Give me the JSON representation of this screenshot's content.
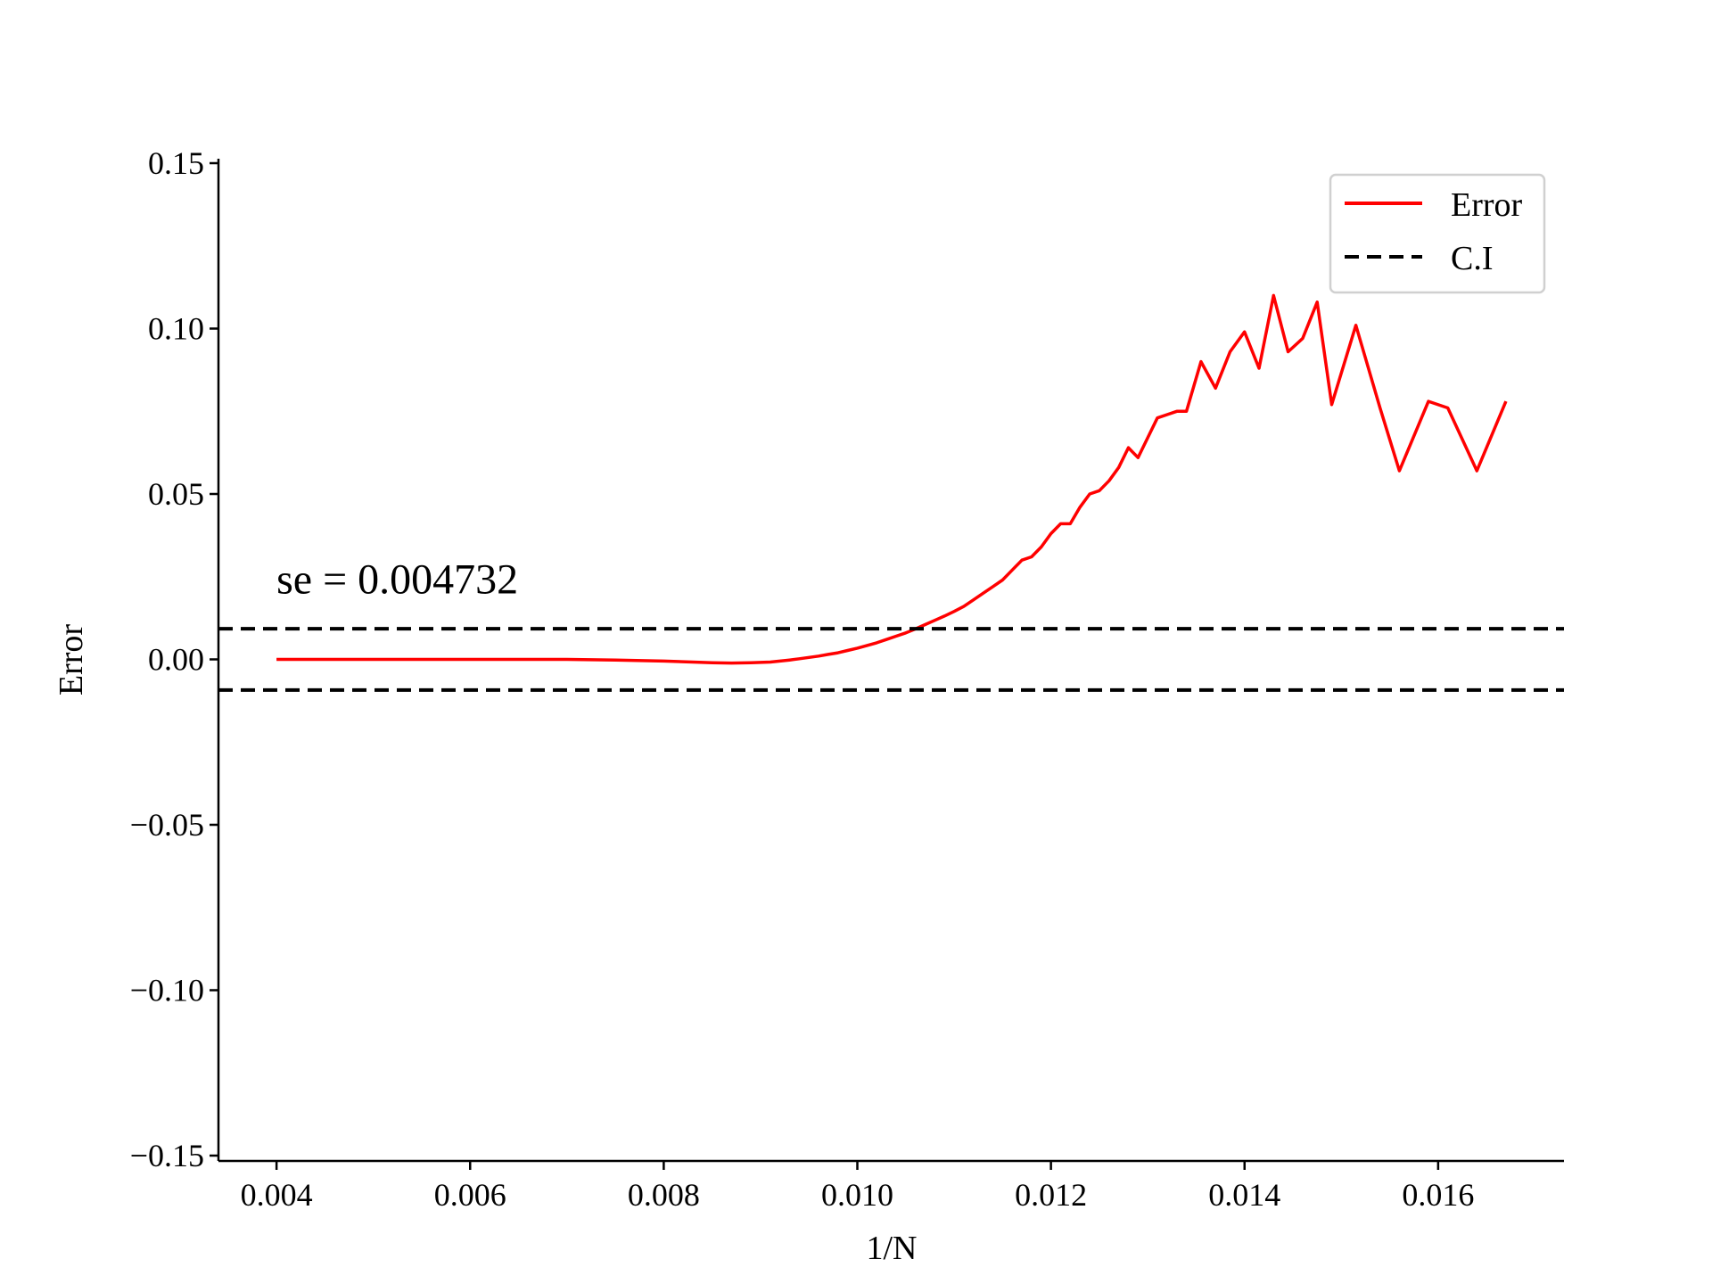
{
  "chart_data": {
    "type": "line",
    "xlabel": "1/N",
    "ylabel": "Error",
    "xlim": [
      0.0034,
      0.0173
    ],
    "ylim": [
      -0.15,
      0.15
    ],
    "xticks": [
      0.004,
      0.006,
      0.008,
      0.01,
      0.012,
      0.014,
      0.016
    ],
    "xtick_labels": [
      "0.004",
      "0.006",
      "0.008",
      "0.010",
      "0.012",
      "0.014",
      "0.016"
    ],
    "yticks": [
      0.15,
      0.1,
      0.05,
      0.0,
      -0.05,
      -0.1,
      -0.15
    ],
    "ytick_labels": [
      "0.15",
      "0.10",
      "0.05",
      "0.00",
      "−0.05",
      "−0.10",
      "−0.15"
    ],
    "annotation": {
      "text": "se = 0.004732",
      "x": 0.004,
      "y": 0.02
    },
    "legend": {
      "position": "top-right",
      "entries": [
        "Error",
        "C.I"
      ]
    },
    "grid": false,
    "series": [
      {
        "name": "Error",
        "color": "#ff0000",
        "style": "solid",
        "x": [
          0.004,
          0.005,
          0.006,
          0.007,
          0.0075,
          0.008,
          0.0083,
          0.0085,
          0.0087,
          0.0089,
          0.0091,
          0.0092,
          0.0093,
          0.0094,
          0.0095,
          0.0096,
          0.0097,
          0.0098,
          0.0099,
          0.01,
          0.0101,
          0.0102,
          0.0103,
          0.0104,
          0.0105,
          0.0106,
          0.0107,
          0.0108,
          0.0109,
          0.011,
          0.0111,
          0.0112,
          0.0113,
          0.0114,
          0.0115,
          0.0116,
          0.0117,
          0.0118,
          0.0119,
          0.012,
          0.0121,
          0.0122,
          0.0123,
          0.0124,
          0.0125,
          0.0126,
          0.0127,
          0.0128,
          0.0129,
          0.013,
          0.0131,
          0.0132,
          0.0133,
          0.0134,
          0.01355,
          0.0137,
          0.01385,
          0.014,
          0.01415,
          0.0143,
          0.01445,
          0.0146,
          0.01475,
          0.0149,
          0.01515,
          0.0154,
          0.0156,
          0.0159,
          0.0161,
          0.0164,
          0.0167
        ],
        "y": [
          0.0,
          0.0,
          0.0,
          0.0,
          -0.0002,
          -0.0005,
          -0.0008,
          -0.001,
          -0.0011,
          -0.001,
          -0.0008,
          -0.0005,
          -0.0002,
          0.0002,
          0.0006,
          0.001,
          0.0015,
          0.002,
          0.0027,
          0.0034,
          0.0042,
          0.005,
          0.006,
          0.007,
          0.008,
          0.0092,
          0.0105,
          0.0118,
          0.0131,
          0.0145,
          0.016,
          0.018,
          0.02,
          0.022,
          0.024,
          0.027,
          0.03,
          0.031,
          0.034,
          0.038,
          0.041,
          0.041,
          0.046,
          0.05,
          0.051,
          0.054,
          0.058,
          0.064,
          0.061,
          0.067,
          0.073,
          0.074,
          0.075,
          0.075,
          0.09,
          0.082,
          0.093,
          0.099,
          0.088,
          0.11,
          0.093,
          0.097,
          0.108,
          0.077,
          0.101,
          0.076,
          0.057,
          0.078,
          0.076,
          0.057,
          0.078
        ]
      },
      {
        "name": "C.I",
        "color": "#000000",
        "style": "dashed",
        "x": [
          0.0034,
          0.0173
        ],
        "y": [
          0.009274,
          0.009274
        ]
      },
      {
        "name": "C.I",
        "color": "#000000",
        "style": "dashed",
        "x": [
          0.0034,
          0.0173
        ],
        "y": [
          -0.009274,
          -0.009274
        ]
      }
    ]
  }
}
